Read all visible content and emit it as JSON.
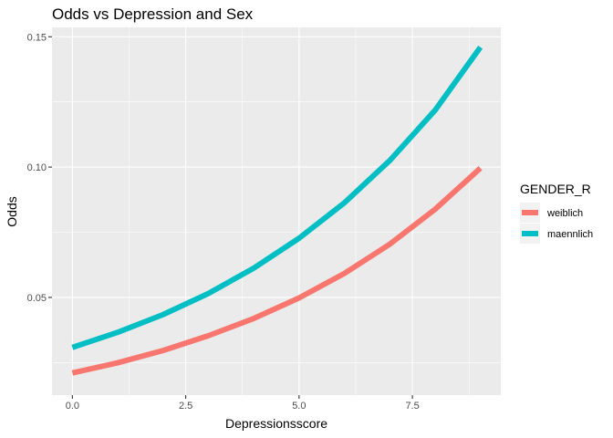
{
  "chart_data": {
    "type": "line",
    "title": "Odds vs Depression and Sex",
    "xlabel": "Depressionsscore",
    "ylabel": "Odds",
    "x": [
      0,
      1,
      2,
      3,
      4,
      5,
      6,
      7,
      8,
      9
    ],
    "xlim": [
      -0.45,
      9.45
    ],
    "ylim": [
      0.0125,
      0.1536
    ],
    "x_ticks": [
      0,
      2.5,
      5,
      7.5
    ],
    "x_tick_labels": [
      "0.0",
      "2.5",
      "5.0",
      "7.5"
    ],
    "y_ticks": [
      0.05,
      0.1,
      0.15
    ],
    "y_tick_labels": [
      "0.05",
      "0.10",
      "0.15"
    ],
    "grid": true,
    "legend": {
      "title": "GENDER_R",
      "placement": "right"
    },
    "series": [
      {
        "name": "weiblich",
        "color": "#F8766D",
        "values": [
          0.021,
          0.0249,
          0.0296,
          0.0353,
          0.0419,
          0.0498,
          0.0592,
          0.0704,
          0.0838,
          0.0996
        ]
      },
      {
        "name": "maennlich",
        "color": "#00BFC4",
        "values": [
          0.0308,
          0.0366,
          0.0434,
          0.0515,
          0.0612,
          0.0727,
          0.0863,
          0.1025,
          0.1218,
          0.146
        ]
      }
    ]
  }
}
